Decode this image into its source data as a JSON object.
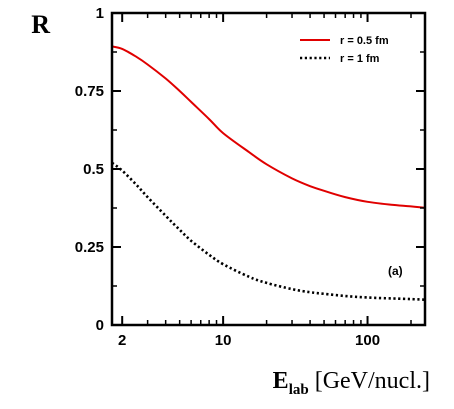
{
  "chart_data": {
    "type": "line",
    "ylabel": "R",
    "xlabel": {
      "main": "E",
      "sub": "lab",
      "rest": " [GeV/nucl.]"
    },
    "panel_label": "(a)",
    "x_scale": "log",
    "xlim": [
      1.7,
      250
    ],
    "ylim": [
      0,
      1
    ],
    "x_ticks": [
      {
        "value": 2,
        "label": "2"
      },
      {
        "value": 10,
        "label": "10"
      },
      {
        "value": 100,
        "label": "100"
      }
    ],
    "y_ticks": [
      {
        "value": 0,
        "label": "0"
      },
      {
        "value": 0.25,
        "label": "0.25"
      },
      {
        "value": 0.5,
        "label": "0.5"
      },
      {
        "value": 0.75,
        "label": "0.75"
      },
      {
        "value": 1,
        "label": "1"
      }
    ],
    "grid": false,
    "legend_position": "top-right",
    "series": [
      {
        "name": "r = 0.5 fm",
        "color": "#e00000",
        "style": "solid",
        "x": [
          1.7,
          2,
          2.5,
          3,
          4,
          5,
          6,
          8,
          10,
          15,
          20,
          30,
          40,
          50,
          70,
          100,
          150,
          200,
          250
        ],
        "y": [
          0.893,
          0.885,
          0.86,
          0.835,
          0.79,
          0.75,
          0.715,
          0.66,
          0.615,
          0.555,
          0.515,
          0.47,
          0.445,
          0.43,
          0.41,
          0.395,
          0.385,
          0.38,
          0.376
        ]
      },
      {
        "name": "r = 1 fm",
        "color": "#000000",
        "style": "dotted",
        "x": [
          1.7,
          2,
          2.5,
          3,
          4,
          5,
          6,
          8,
          10,
          15,
          20,
          30,
          40,
          50,
          70,
          100,
          150,
          200,
          250
        ],
        "y": [
          0.52,
          0.495,
          0.45,
          0.41,
          0.35,
          0.305,
          0.27,
          0.225,
          0.195,
          0.155,
          0.135,
          0.115,
          0.105,
          0.1,
          0.093,
          0.088,
          0.085,
          0.083,
          0.081
        ]
      }
    ]
  }
}
